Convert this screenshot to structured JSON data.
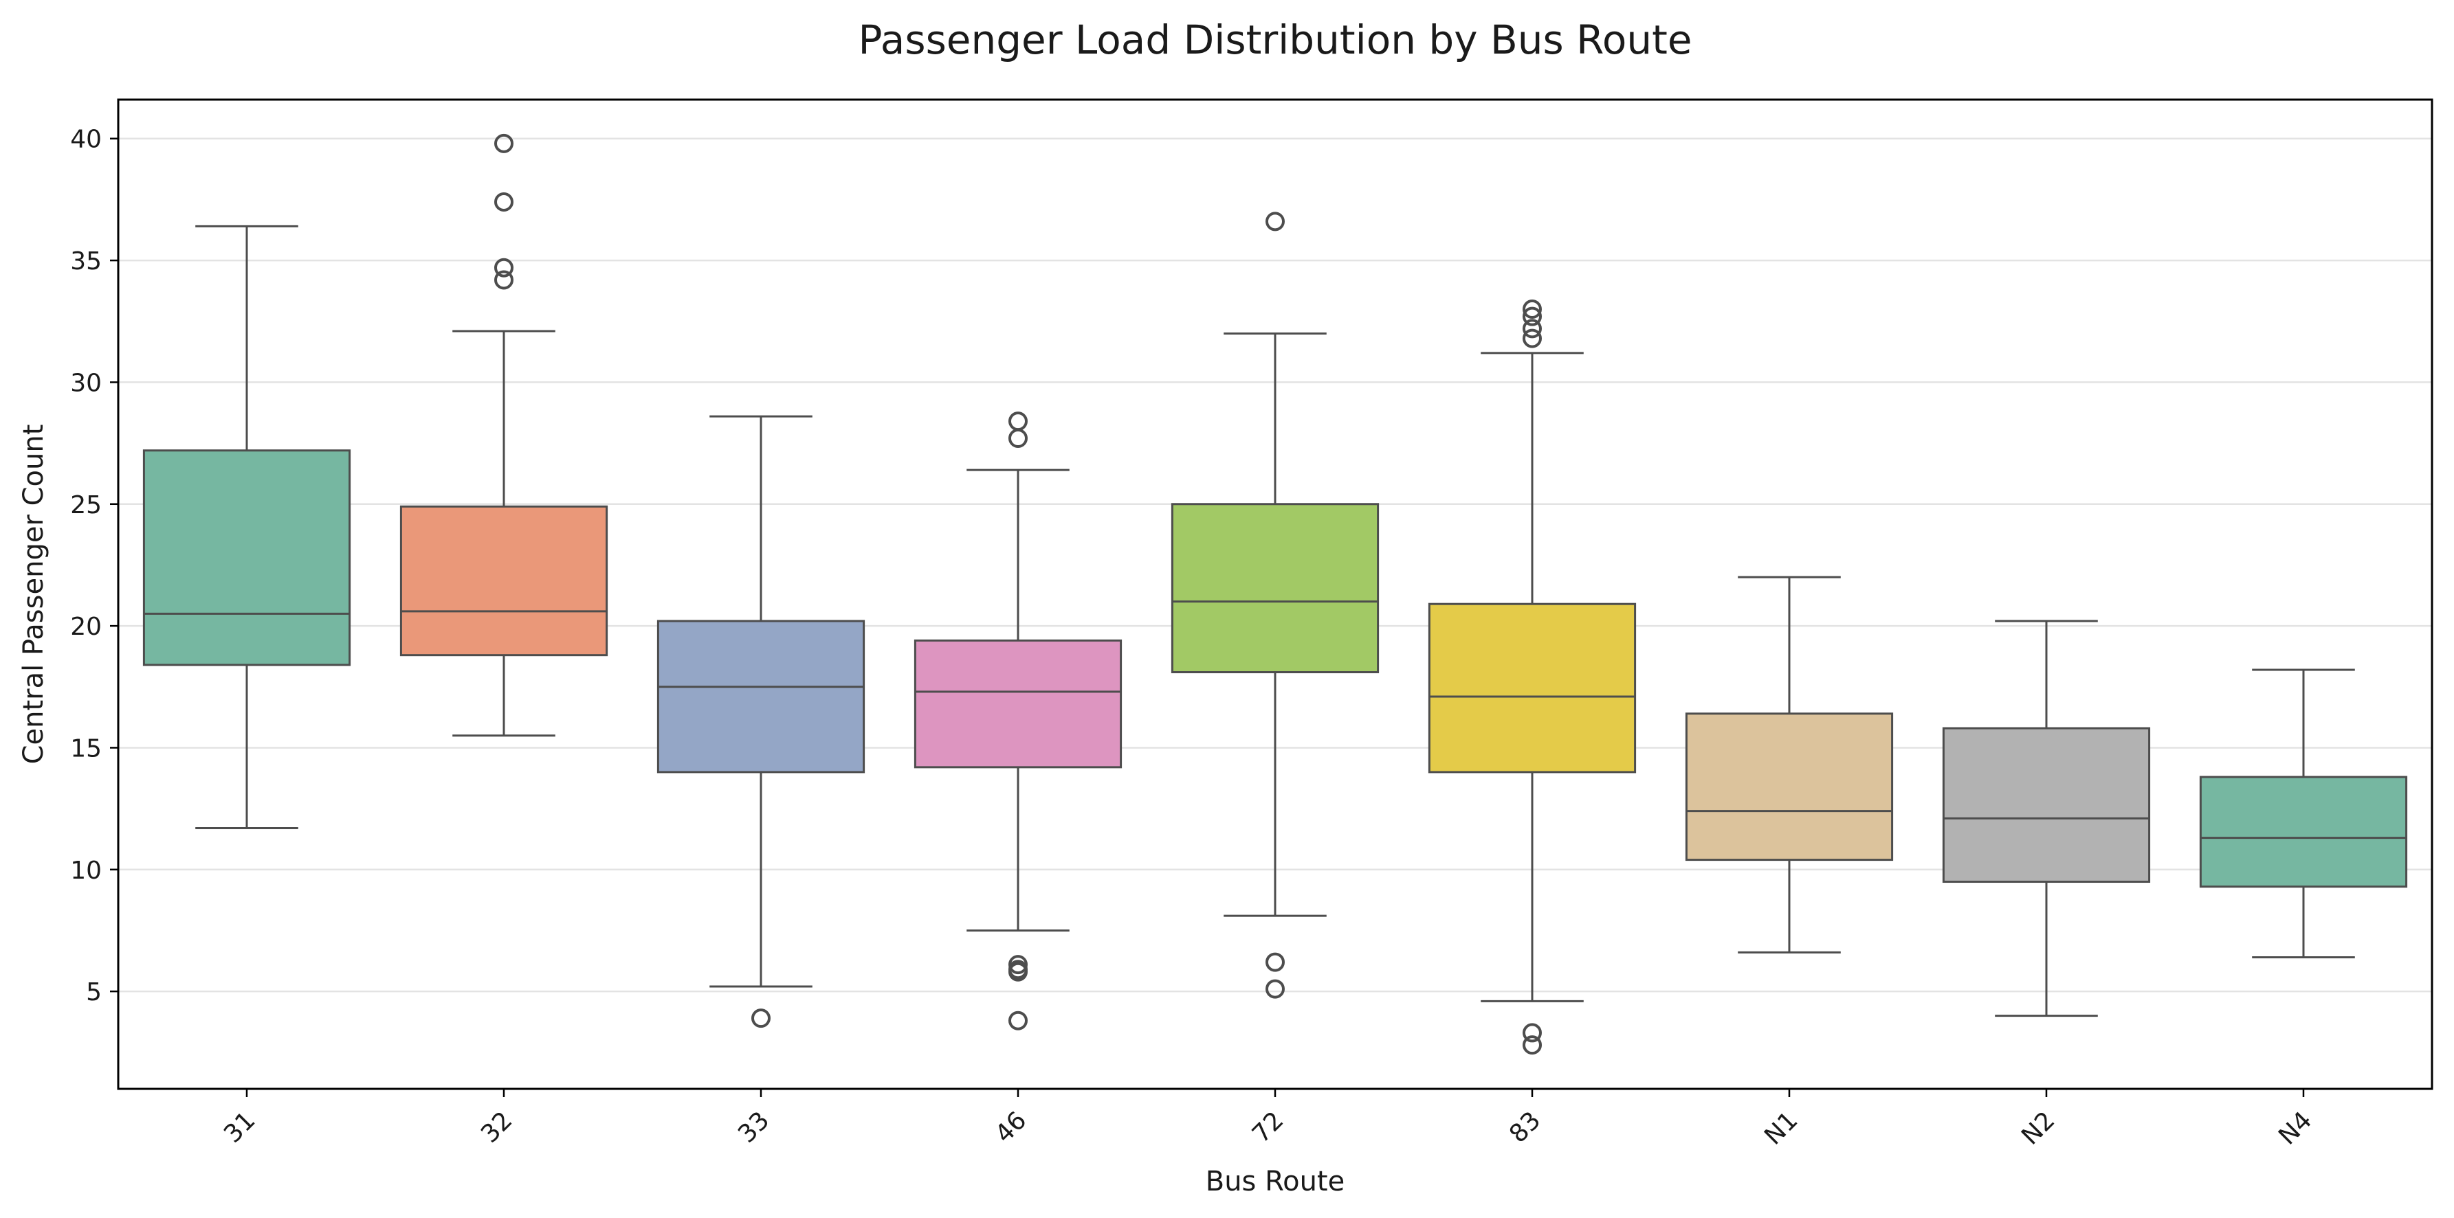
{
  "chart_data": {
    "type": "box",
    "title": "Passenger Load Distribution by Bus Route",
    "xlabel": "Bus Route",
    "ylabel": "Central Passenger Count",
    "ylim": [
      1.0,
      41.6
    ],
    "yticks": [
      5,
      10,
      15,
      20,
      25,
      30,
      35,
      40
    ],
    "grid": "y",
    "categories": [
      "31",
      "32",
      "33",
      "46",
      "72",
      "83",
      "N1",
      "N2",
      "N4"
    ],
    "boxes": [
      {
        "category": "31",
        "whisker_low": 11.7,
        "q1": 18.4,
        "median": 20.5,
        "q3": 27.2,
        "whisker_high": 36.4,
        "outliers": [],
        "color": "#76b7a1"
      },
      {
        "category": "32",
        "whisker_low": 15.5,
        "q1": 18.8,
        "median": 20.6,
        "q3": 24.9,
        "whisker_high": 32.1,
        "outliers": [
          34.2,
          34.7,
          37.4,
          39.8
        ],
        "color": "#ea9879"
      },
      {
        "category": "33",
        "whisker_low": 5.2,
        "q1": 14.0,
        "median": 17.5,
        "q3": 20.2,
        "whisker_high": 28.6,
        "outliers": [
          3.9
        ],
        "color": "#94a6c6"
      },
      {
        "category": "46",
        "whisker_low": 7.5,
        "q1": 14.2,
        "median": 17.3,
        "q3": 19.4,
        "whisker_high": 26.4,
        "outliers": [
          3.8,
          5.8,
          5.9,
          6.1,
          27.7,
          28.4
        ],
        "color": "#dd95c0"
      },
      {
        "category": "72",
        "whisker_low": 8.1,
        "q1": 18.1,
        "median": 21.0,
        "q3": 25.0,
        "whisker_high": 32.0,
        "outliers": [
          5.1,
          6.2,
          36.6
        ],
        "color": "#a2c965"
      },
      {
        "category": "83",
        "whisker_low": 4.6,
        "q1": 14.0,
        "median": 17.1,
        "q3": 20.9,
        "whisker_high": 31.2,
        "outliers": [
          2.8,
          3.3,
          31.8,
          32.2,
          32.7,
          33.0
        ],
        "color": "#e4cb49"
      },
      {
        "category": "N1",
        "whisker_low": 6.6,
        "q1": 10.4,
        "median": 12.4,
        "q3": 16.4,
        "whisker_high": 22.0,
        "outliers": [],
        "color": "#dcc39c"
      },
      {
        "category": "N2",
        "whisker_low": 4.0,
        "q1": 9.5,
        "median": 12.1,
        "q3": 15.8,
        "whisker_high": 20.2,
        "outliers": [],
        "color": "#b2b2b2"
      },
      {
        "category": "N4",
        "whisker_low": 6.4,
        "q1": 9.3,
        "median": 11.3,
        "q3": 13.8,
        "whisker_high": 18.2,
        "outliers": [],
        "color": "#76b7a1"
      }
    ]
  }
}
